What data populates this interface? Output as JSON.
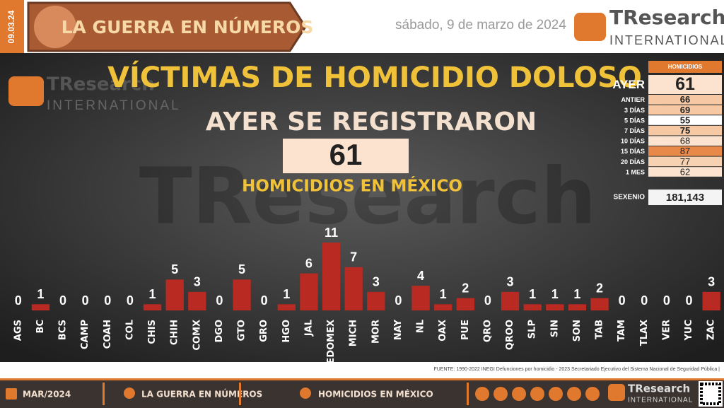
{
  "header": {
    "date_tag": "09.03.24",
    "banner": "LA GUERRA EN NÚMEROS",
    "date": "sábado, 9 de marzo de 2024"
  },
  "logo": {
    "name": "TResearch",
    "sub": "INTERNATIONAL"
  },
  "watermark": "TResearch",
  "headline": {
    "title": "VÍCTIMAS DE HOMICIDIO DOLOSO",
    "subtitle": "AYER SE REGISTRARON",
    "total": 61,
    "caption": "HOMICIDIOS EN MÉXICO"
  },
  "summary": {
    "header": "HOMICIDIOS",
    "rows": [
      {
        "label": "AYER",
        "value": 61,
        "color": "#fbe3cf"
      },
      {
        "label": "ANTIER",
        "value": 66,
        "color": "#f6c9a4"
      },
      {
        "label": "3 DÍAS",
        "value": 69,
        "color": "#f6c9a4"
      },
      {
        "label": "5 DÍAS",
        "value": 55,
        "color": "#ffffff"
      },
      {
        "label": "7 DÍAS",
        "value": 75,
        "color": "#f6c9a4"
      },
      {
        "label": "10 DÍAS",
        "value": 68,
        "color": "#fbe3cf"
      },
      {
        "label": "15 DÍAS",
        "value": 87,
        "color": "#e8894a"
      },
      {
        "label": "20 DÍAS",
        "value": 77,
        "color": "#f6d2b2"
      },
      {
        "label": "1 MES",
        "value": 62,
        "color": "#fbe3cf"
      }
    ],
    "sexenio_label": "SEXENIO",
    "sexenio": "181,143"
  },
  "source": "FUENTE: 1990-2022 INEGI Defunciones por homicidio - 2023 Secretariado Ejecutivo del Sistema Nacional de Seguridad Pública |",
  "footer": {
    "month": "MAR/2024",
    "section": "LA GUERRA EN NÚMEROS",
    "topic": "HOMICIDIOS EN MÉXICO"
  },
  "chart_data": {
    "type": "bar",
    "color": "#b82a22",
    "categories": [
      "AGS",
      "BC",
      "BCS",
      "CAMP",
      "COAH",
      "COL",
      "CHIS",
      "CHIH",
      "COMX",
      "DGO",
      "GTO",
      "GRO",
      "HGO",
      "JAL",
      "EDOMEX",
      "MICH",
      "MOR",
      "NAY",
      "NL",
      "OAX",
      "PUE",
      "QRO",
      "QROO",
      "SLP",
      "SIN",
      "SON",
      "TAB",
      "TAM",
      "TLAX",
      "VER",
      "YUC",
      "ZAC"
    ],
    "values": [
      0,
      1,
      0,
      0,
      0,
      0,
      1,
      5,
      3,
      0,
      5,
      0,
      1,
      6,
      11,
      7,
      3,
      0,
      4,
      1,
      2,
      0,
      3,
      1,
      1,
      1,
      2,
      0,
      0,
      0,
      0,
      3
    ],
    "ylim": [
      0,
      11
    ]
  }
}
